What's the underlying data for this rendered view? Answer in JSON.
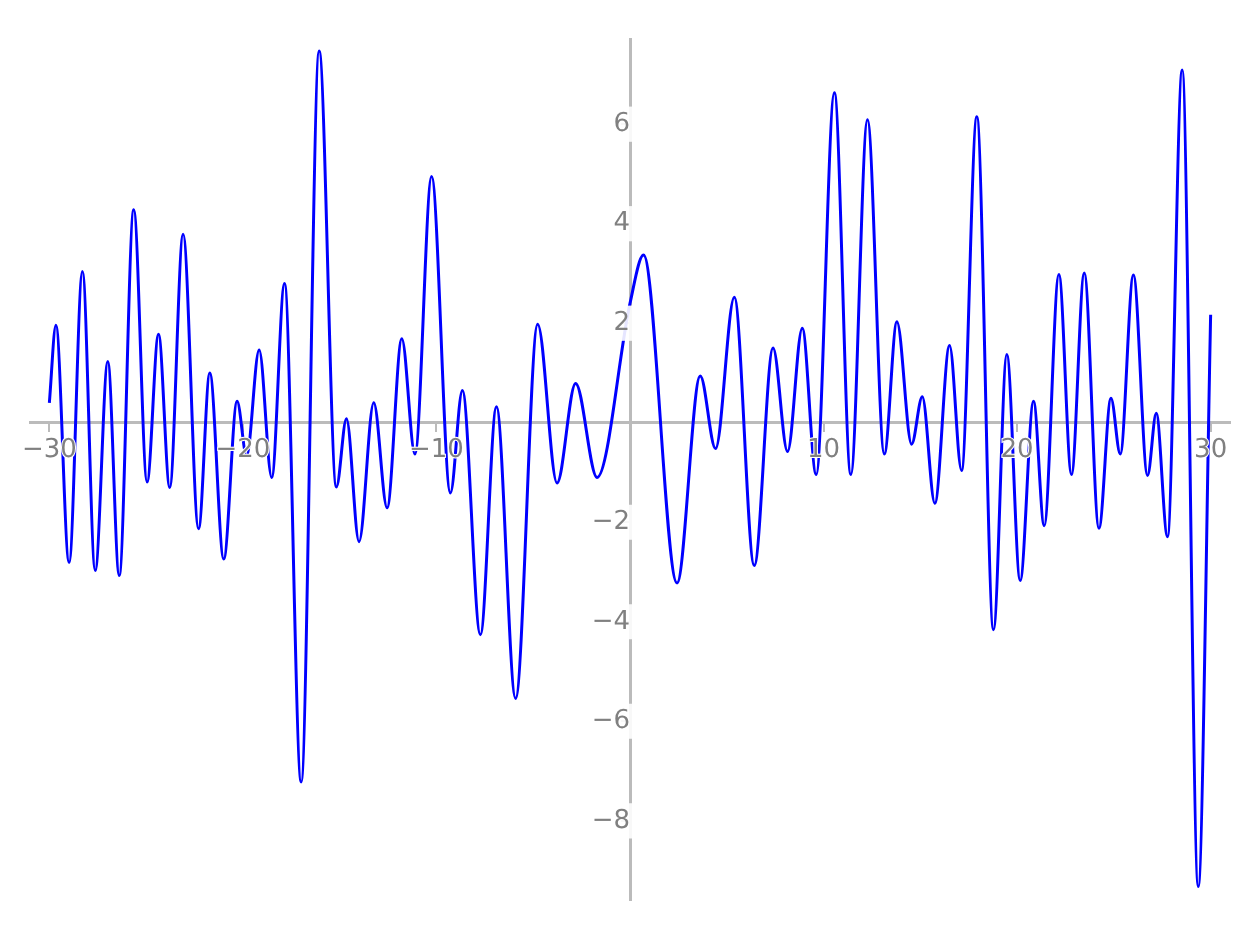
{
  "chart_data": {
    "type": "line",
    "x": [
      -30,
      -29.66,
      -28.98,
      -28.29,
      -27.63,
      -26.98,
      -26.39,
      -25.64,
      -24.95,
      -24.36,
      -23.78,
      -23.09,
      -22.29,
      -21.71,
      -20.99,
      -20.3,
      -19.81,
      -19.16,
      -18.51,
      -17.85,
      -16.99,
      -16.06,
      -15.17,
      -14.65,
      -14,
      -13.24,
      -12.55,
      -11.79,
      -11.11,
      -10.25,
      -9.28,
      -8.66,
      -7.73,
      -6.9,
      -5.91,
      -4.77,
      -3.77,
      -2.81,
      -1.7,
      0,
      0.7,
      2.43,
      3.63,
      4.42,
      5.39,
      6.42,
      7.39,
      8.14,
      8.9,
      9.62,
      10.56,
      11.41,
      12.27,
      13.14,
      13.79,
      14.55,
      15.1,
      15.75,
      16.51,
      17.13,
      17.92,
      18.78,
      19.47,
      20.16,
      20.85,
      21.4,
      22.16,
      22.81,
      23.47,
      24.23,
      24.85,
      25.33,
      26.01,
      26.74,
      27.19,
      27.77,
      28.53,
      29.36,
      30
    ],
    "series": [
      {
        "color": "#0000ff",
        "values": [
          0.4,
          1.96,
          -2.81,
          3.04,
          -2.97,
          1.23,
          -3.07,
          4.28,
          -1.19,
          1.78,
          -1.3,
          3.79,
          -2.13,
          1,
          -2.74,
          0.43,
          -0.67,
          1.46,
          -1.1,
          2.8,
          -7.22,
          7.47,
          -1.29,
          0.08,
          -2.39,
          0.4,
          -1.71,
          1.69,
          -0.63,
          4.95,
          -1.41,
          0.65,
          -4.26,
          0.32,
          -5.54,
          1.98,
          -1.21,
          0.79,
          -1.1,
          2.4,
          3.37,
          -3.22,
          0.94,
          -0.52,
          2.52,
          -2.87,
          1.5,
          -0.58,
          1.9,
          -1.04,
          6.63,
          -1.04,
          6.09,
          -0.63,
          2.03,
          -0.43,
          0.52,
          -1.62,
          1.55,
          -0.96,
          6.15,
          -4.16,
          1.37,
          -3.17,
          0.43,
          -2.07,
          2.98,
          -1.04,
          3.01,
          -2.12,
          0.49,
          -0.63,
          2.97,
          -1.06,
          0.19,
          -2.29,
          7.09,
          -9.32,
          2.17
        ]
      }
    ],
    "xlim": [
      -31,
      31
    ],
    "ylim": [
      -9.6,
      7.7
    ],
    "xticks": [
      -30,
      -20,
      -10,
      10,
      20,
      30
    ],
    "yticks": [
      -8,
      -6,
      -4,
      -2,
      2,
      4,
      6
    ],
    "grid": false,
    "legend": false,
    "marker": "none",
    "line_style": "solid"
  }
}
